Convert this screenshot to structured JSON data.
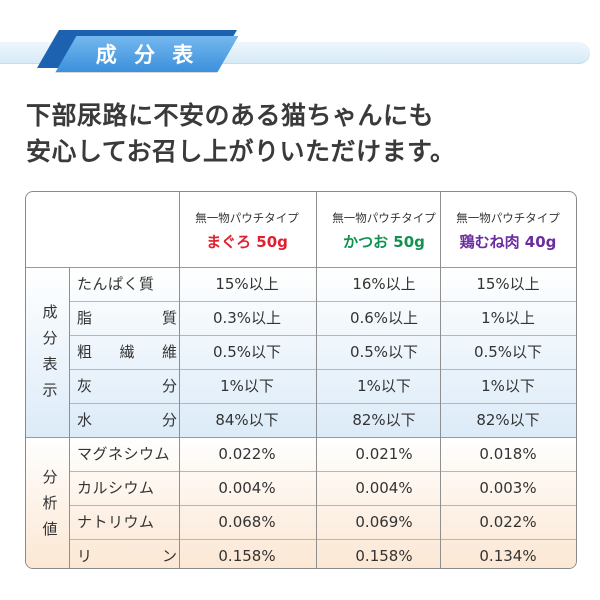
{
  "header": {
    "title": "成 分 表"
  },
  "headline": {
    "line1": "下部尿路に不安のある猫ちゃんにも",
    "line2": "安心してお召し上がりいただけます。"
  },
  "colors": {
    "accent": "#3c90dc",
    "accent_dark": "#1c62b1",
    "maguro": "#e0202e",
    "katsuo": "#129250",
    "torimune": "#6a2ca0"
  },
  "table": {
    "products": [
      {
        "type": "無一物パウチタイプ",
        "name": "まぐろ 50g"
      },
      {
        "type": "無一物パウチタイプ",
        "name": "かつお 50g"
      },
      {
        "type": "無一物パウチタイプ",
        "name": "鶏むね肉 40g"
      }
    ],
    "groups": [
      {
        "label_chars": [
          "成",
          "分",
          "表",
          "示"
        ],
        "rows": [
          {
            "label": "たんぱく質",
            "values": [
              "15%以上",
              "16%以上",
              "15%以上"
            ]
          },
          {
            "label_chars": [
              "脂",
              "質"
            ],
            "values": [
              "0.3%以上",
              "0.6%以上",
              "1%以上"
            ]
          },
          {
            "label_chars": [
              "粗",
              "繊",
              "維"
            ],
            "values": [
              "0.5%以下",
              "0.5%以下",
              "0.5%以下"
            ]
          },
          {
            "label_chars": [
              "灰",
              "分"
            ],
            "values": [
              "1%以下",
              "1%以下",
              "1%以下"
            ]
          },
          {
            "label_chars": [
              "水",
              "分"
            ],
            "values": [
              "84%以下",
              "82%以下",
              "82%以下"
            ]
          }
        ]
      },
      {
        "label_chars": [
          "分",
          "析",
          "値"
        ],
        "rows": [
          {
            "label": "マグネシウム",
            "values": [
              "0.022%",
              "0.021%",
              "0.018%"
            ]
          },
          {
            "label": "カルシウム",
            "values": [
              "0.004%",
              "0.004%",
              "0.003%"
            ]
          },
          {
            "label": "ナトリウム",
            "values": [
              "0.068%",
              "0.069%",
              "0.022%"
            ]
          },
          {
            "label_chars": [
              "リ",
              "ン"
            ],
            "values": [
              "0.158%",
              "0.158%",
              "0.134%"
            ]
          }
        ]
      }
    ]
  }
}
